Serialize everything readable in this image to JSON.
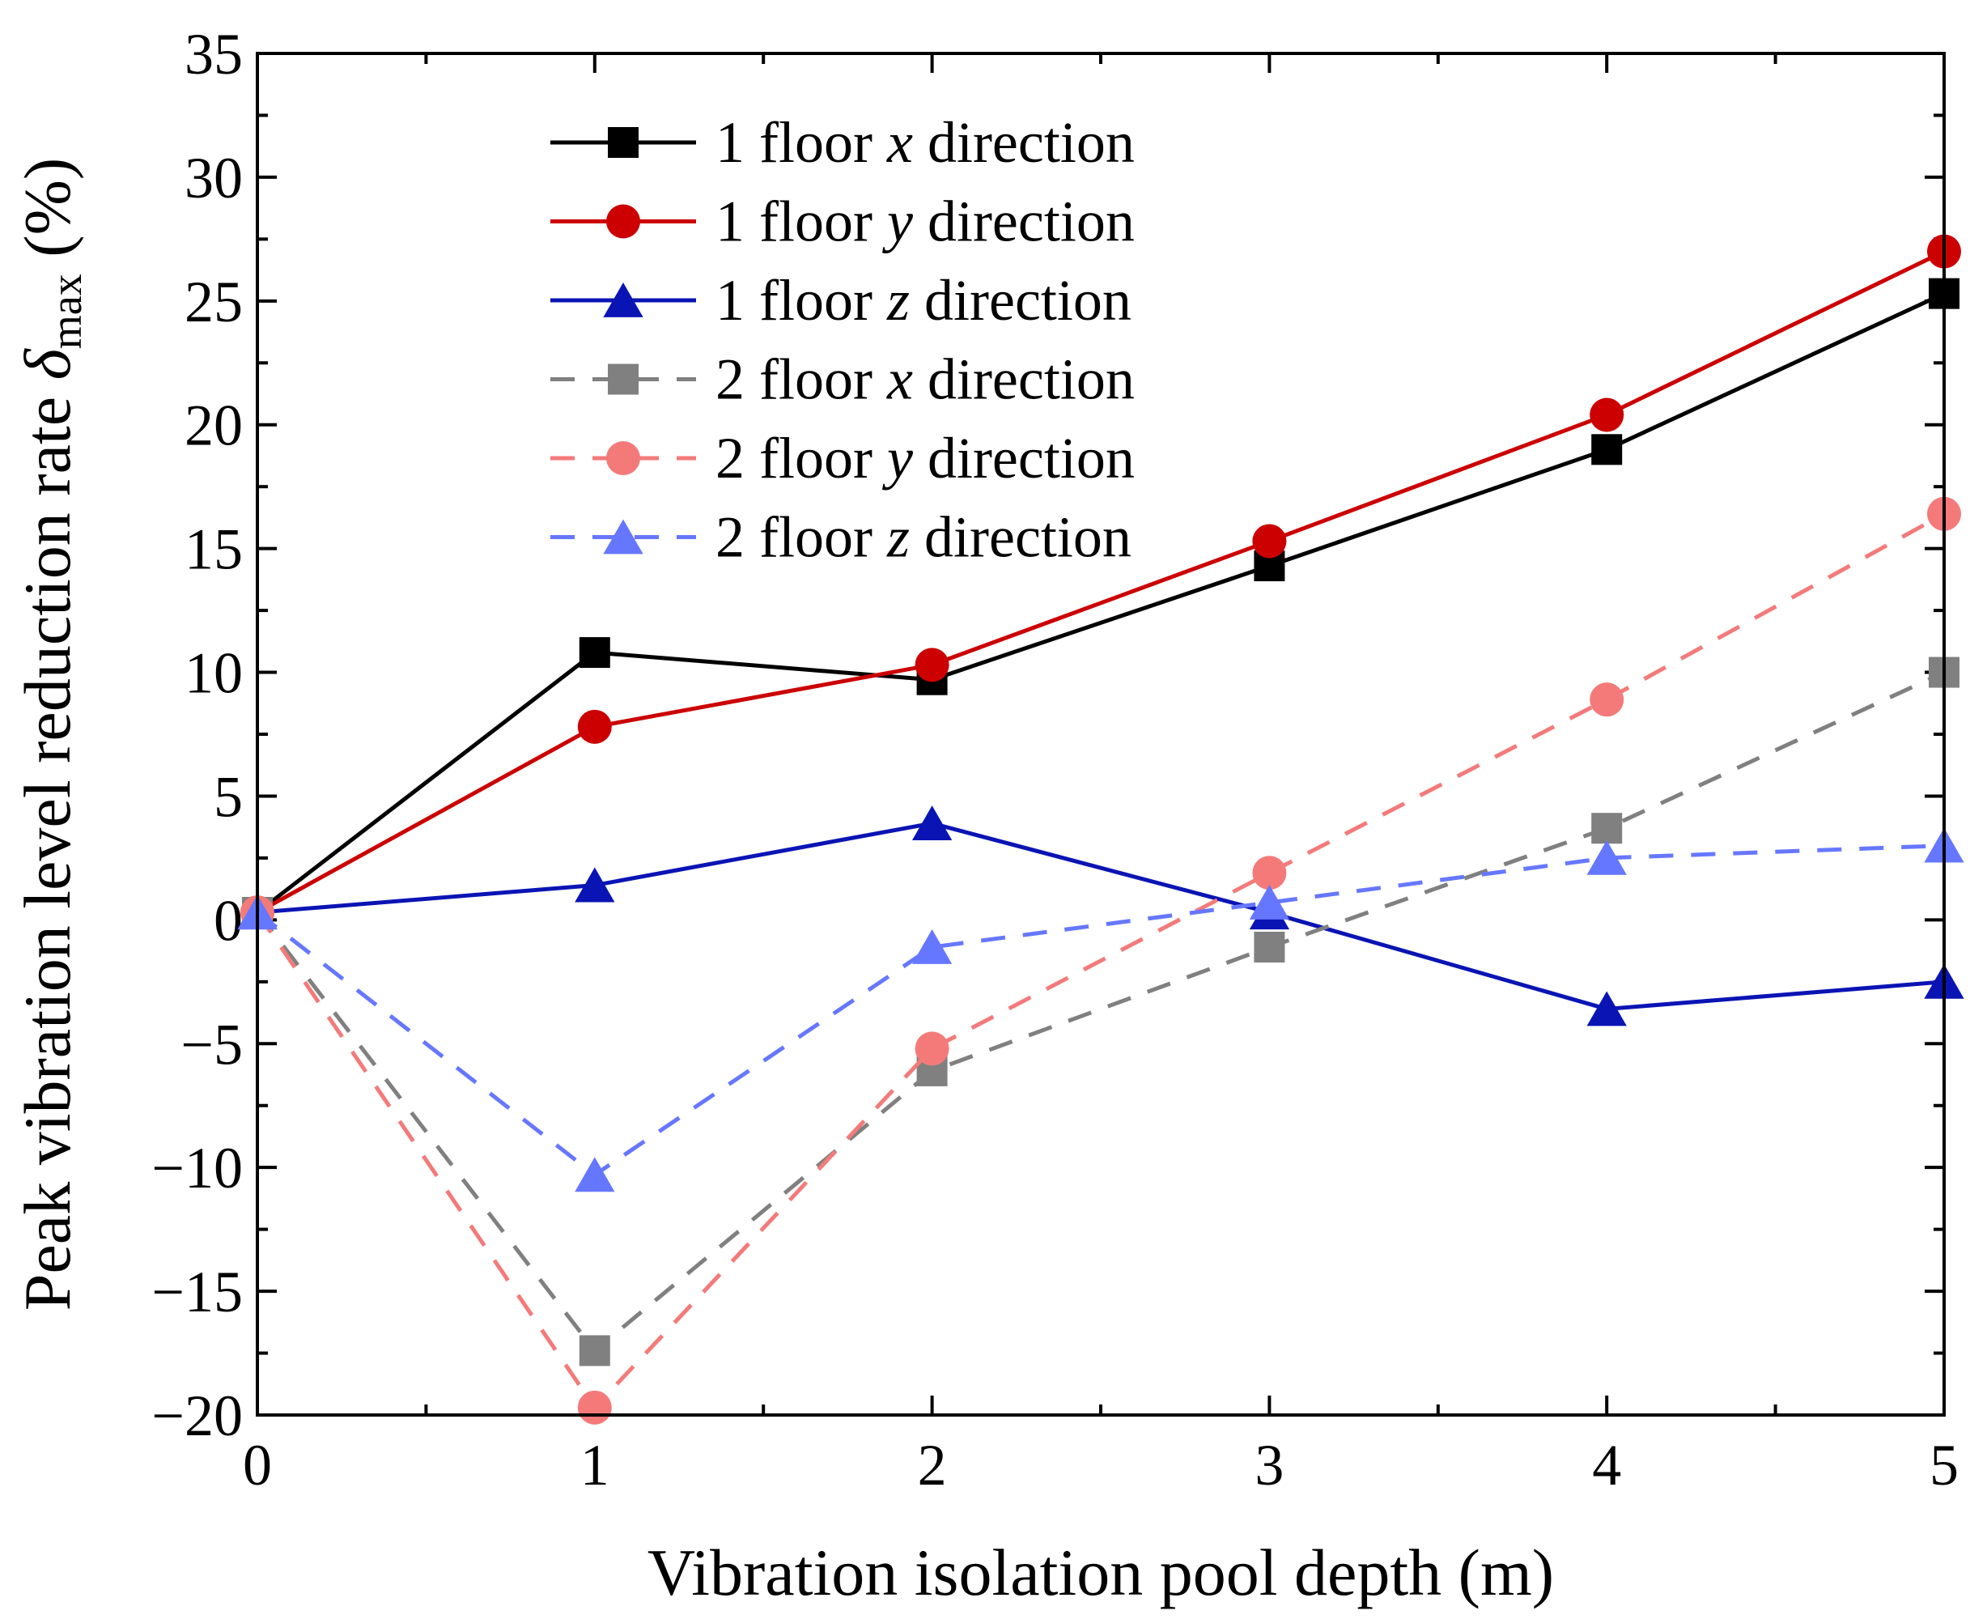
{
  "chart_data": {
    "type": "line",
    "xlabel": "Vibration isolation pool depth (m)",
    "ylabel": {
      "prefix": "Peak vibration level reduction rate ",
      "symbol": "δ",
      "subscript": "max",
      "suffix": " (%)"
    },
    "xlim": [
      0,
      5
    ],
    "ylim": [
      -20,
      35
    ],
    "x": [
      0,
      1,
      2,
      3,
      4,
      5
    ],
    "xticks": [
      0,
      1,
      2,
      3,
      4,
      5
    ],
    "xtick_labels": [
      "0",
      "1",
      "2",
      "3",
      "4",
      "5"
    ],
    "yticks": [
      -20,
      -15,
      -10,
      -5,
      0,
      5,
      10,
      15,
      20,
      25,
      30,
      35
    ],
    "ytick_labels": [
      "−20",
      "−15",
      "−10",
      "−5",
      "0",
      "5",
      "10",
      "15",
      "20",
      "25",
      "30",
      "35"
    ],
    "legend_position": "top-left",
    "series": [
      {
        "name": "1 floor x direction",
        "label_pre": "1 floor ",
        "label_var": "x",
        "label_post": " direction",
        "color": "#000000",
        "marker": "square",
        "dash": "solid",
        "values": [
          0.3,
          10.8,
          9.7,
          14.3,
          19.0,
          25.3
        ]
      },
      {
        "name": "1 floor y direction",
        "label_pre": "1 floor ",
        "label_var": "y",
        "label_post": " direction",
        "color": "#cc0000",
        "marker": "circle",
        "dash": "solid",
        "values": [
          0.3,
          7.8,
          10.3,
          15.3,
          20.4,
          27.0
        ]
      },
      {
        "name": "1 floor z direction",
        "label_pre": "1 floor ",
        "label_var": "z",
        "label_post": " direction",
        "color": "#0a14b4",
        "marker": "triangle",
        "dash": "solid",
        "values": [
          0.3,
          1.4,
          3.9,
          0.3,
          -3.6,
          -2.5
        ]
      },
      {
        "name": "2 floor x direction",
        "label_pre": "2 floor ",
        "label_var": "x",
        "label_post": " direction",
        "color": "#808080",
        "marker": "square",
        "dash": "dashed",
        "values": [
          0.3,
          -17.4,
          -6.1,
          -1.1,
          3.7,
          10.0
        ]
      },
      {
        "name": "2 floor y direction",
        "label_pre": "2 floor ",
        "label_var": "y",
        "label_post": " direction",
        "color": "#f47a7a",
        "marker": "circle",
        "dash": "dashed",
        "values": [
          0.3,
          -19.7,
          -5.2,
          1.9,
          8.9,
          16.4
        ]
      },
      {
        "name": "2 floor z direction",
        "label_pre": "2 floor ",
        "label_var": "z",
        "label_post": " direction",
        "color": "#6677ff",
        "marker": "triangle",
        "dash": "dashed",
        "values": [
          0.3,
          -10.3,
          -1.1,
          0.7,
          2.5,
          3.0
        ]
      }
    ]
  }
}
